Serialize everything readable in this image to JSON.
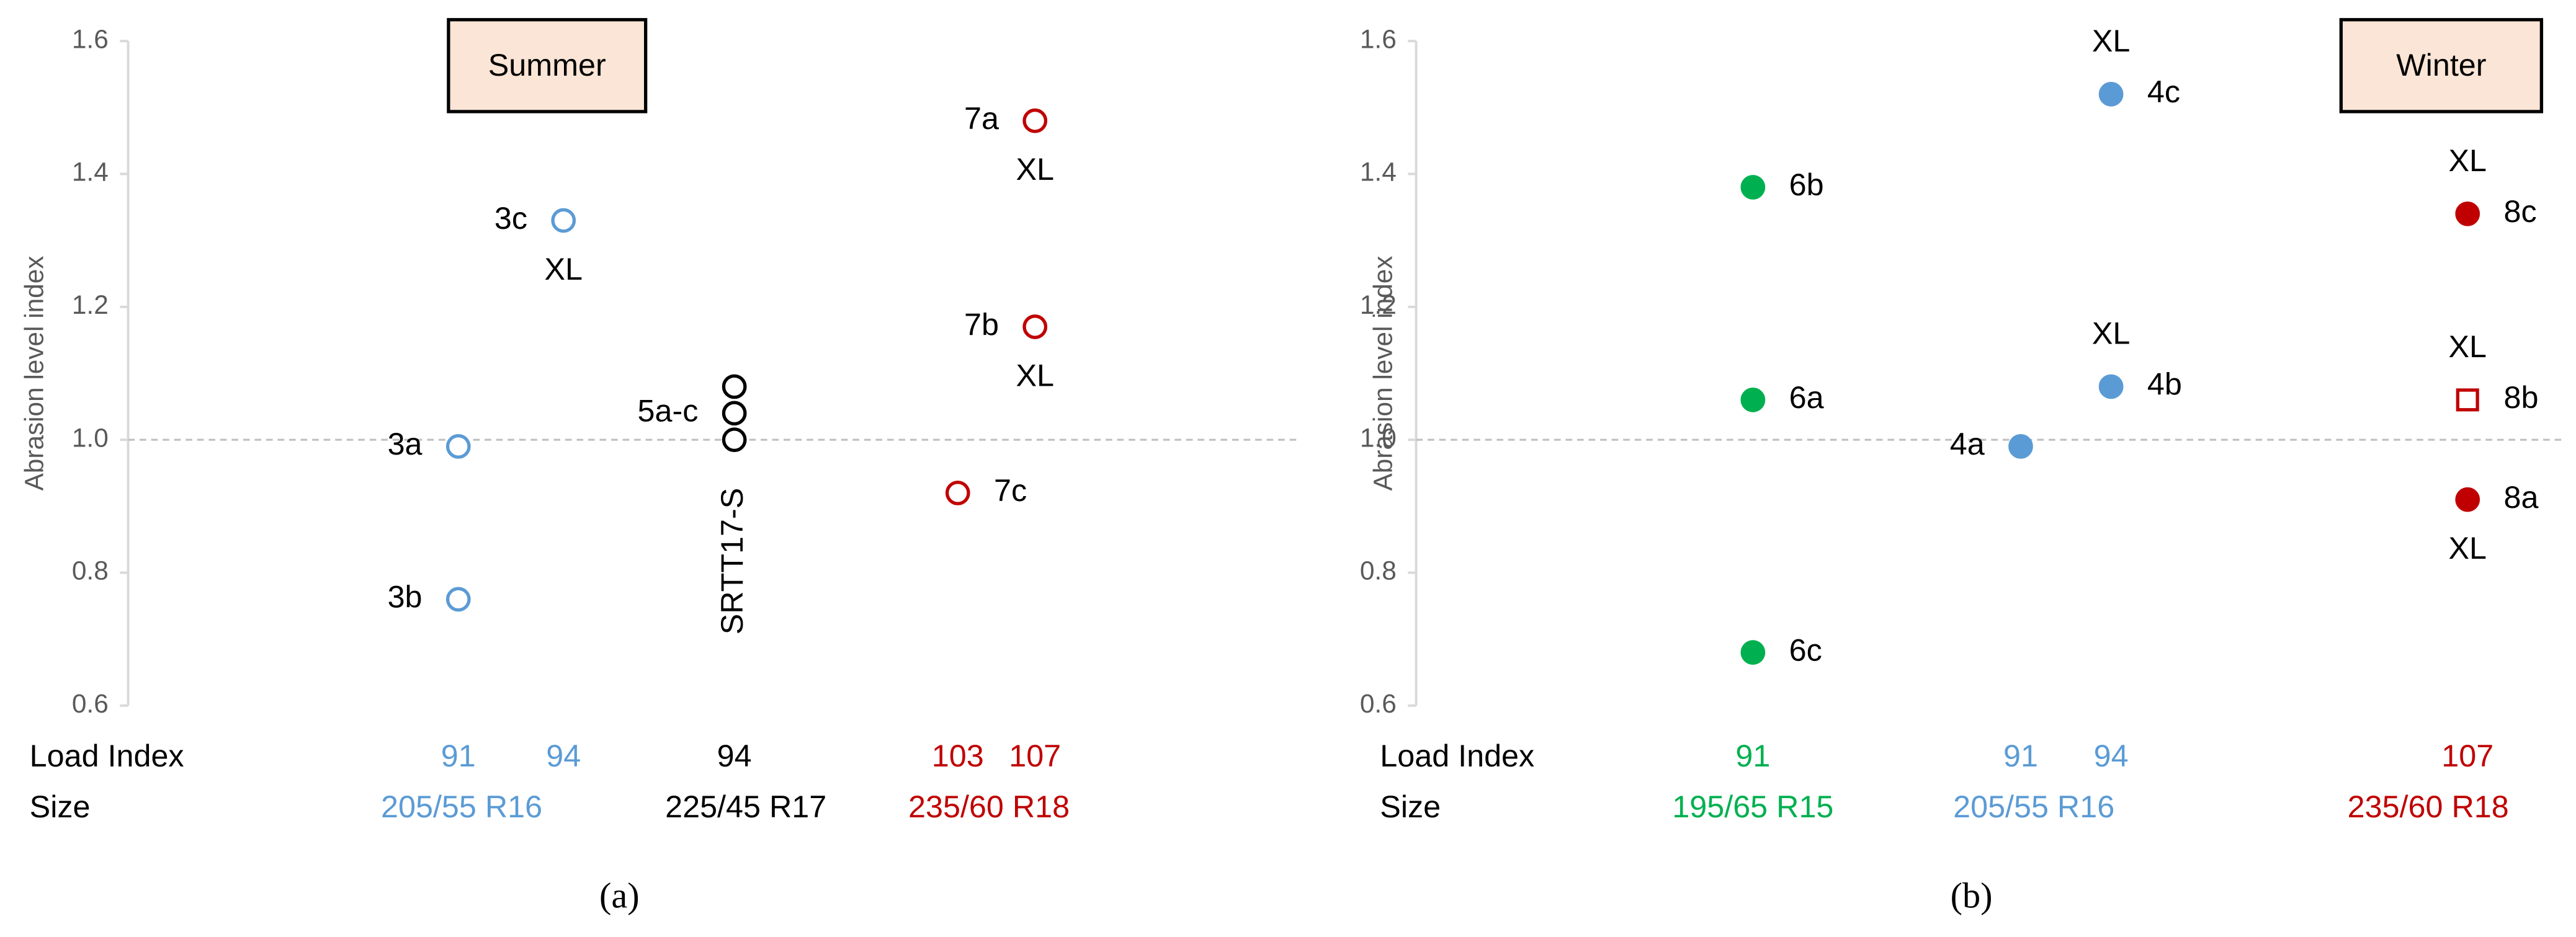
{
  "chart_data": [
    {
      "type": "scatter",
      "caption": "(a)",
      "box_label": "Summer",
      "y_label": "Abrasion level index",
      "ylim": [
        0.6,
        1.6
      ],
      "yticks": [
        0.6,
        0.8,
        {
          "value": 1,
          "label": "1.0"
        },
        1.2,
        1.4,
        1.6
      ],
      "reference_line": 1,
      "row_labels": [
        "Load Index",
        "Size"
      ],
      "columns": [
        {
          "load_index": "91",
          "color": "#5b9bd5"
        },
        {
          "load_index": "94",
          "color": "#5b9bd5"
        },
        {
          "load_index": "94",
          "color": "#000000"
        },
        {
          "load_index": "103",
          "color": "#c00000"
        },
        {
          "load_index": "107",
          "color": "#c00000"
        }
      ],
      "sizes": [
        {
          "label": "205/55 R16",
          "color": "#5b9bd5"
        },
        {
          "label": "225/45 R17",
          "color": "#000000"
        },
        {
          "label": "235/60 R18",
          "color": "#c00000"
        }
      ],
      "column_note": {
        "column": 2,
        "text": "SRTT17-S"
      },
      "points": [
        {
          "column": 0,
          "values": [
            0.99
          ],
          "label": "3a",
          "label_side": "left",
          "marker": "open-circle"
        },
        {
          "column": 0,
          "values": [
            0.76
          ],
          "label": "3b",
          "label_side": "left",
          "marker": "open-circle"
        },
        {
          "column": 1,
          "values": [
            1.33
          ],
          "label": "3c",
          "label_side": "left",
          "marker": "open-circle",
          "note": "XL",
          "note_position": "below"
        },
        {
          "column": 2,
          "values": [
            1.08,
            1.04,
            1.0
          ],
          "label": "5a-c",
          "label_side": "left",
          "marker": "open-circle"
        },
        {
          "column": 4,
          "values": [
            1.48
          ],
          "label": "7a",
          "label_side": "left",
          "marker": "open-circle",
          "note": "XL",
          "note_position": "below"
        },
        {
          "column": 4,
          "values": [
            1.17
          ],
          "label": "7b",
          "label_side": "left",
          "marker": "open-circle",
          "note": "XL",
          "note_position": "below"
        },
        {
          "column": 3,
          "values": [
            0.92
          ],
          "label": "7c",
          "label_side": "right",
          "marker": "open-circle"
        }
      ]
    },
    {
      "type": "scatter",
      "caption": "(b)",
      "box_label": "Winter",
      "y_label": "Abrasion level index",
      "ylim": [
        0.6,
        1.6
      ],
      "yticks": [
        0.6,
        0.8,
        {
          "value": 1,
          "label": "1.0"
        },
        1.2,
        1.4,
        1.6
      ],
      "reference_line": 1,
      "row_labels": [
        "Load Index",
        "Size"
      ],
      "columns": [
        {
          "load_index": "91",
          "color": "#00b050"
        },
        {
          "load_index": "91",
          "color": "#5b9bd5"
        },
        {
          "load_index": "94",
          "color": "#5b9bd5"
        },
        {
          "load_index": "107",
          "color": "#c00000"
        }
      ],
      "sizes": [
        {
          "label": "195/65 R15",
          "color": "#00b050"
        },
        {
          "label": "205/55 R16",
          "color": "#5b9bd5"
        },
        {
          "label": "235/60 R18",
          "color": "#c00000"
        }
      ],
      "points": [
        {
          "column": 0,
          "values": [
            1.38
          ],
          "label": "6b",
          "label_side": "right",
          "marker": "filled-circle"
        },
        {
          "column": 0,
          "values": [
            1.06
          ],
          "label": "6a",
          "label_side": "right",
          "marker": "filled-circle"
        },
        {
          "column": 0,
          "values": [
            0.68
          ],
          "label": "6c",
          "label_side": "right",
          "marker": "filled-circle"
        },
        {
          "column": 1,
          "values": [
            0.99
          ],
          "label": "4a",
          "label_side": "left",
          "marker": "filled-circle"
        },
        {
          "column": 2,
          "values": [
            1.08
          ],
          "label": "4b",
          "label_side": "right",
          "marker": "filled-circle",
          "note": "XL",
          "note_position": "above"
        },
        {
          "column": 2,
          "values": [
            1.52
          ],
          "label": "4c",
          "label_side": "right",
          "marker": "filled-circle",
          "note": "XL",
          "note_position": "above"
        },
        {
          "column": 3,
          "values": [
            1.34
          ],
          "label": "8c",
          "label_side": "right",
          "marker": "filled-circle",
          "note": "XL",
          "note_position": "above"
        },
        {
          "column": 3,
          "values": [
            1.06
          ],
          "label": "8b",
          "label_side": "right",
          "marker": "open-square",
          "note": "XL",
          "note_position": "above"
        },
        {
          "column": 3,
          "values": [
            0.91
          ],
          "label": "8a",
          "label_side": "right",
          "marker": "filled-circle",
          "note": "XL",
          "note_position": "below"
        }
      ]
    }
  ]
}
